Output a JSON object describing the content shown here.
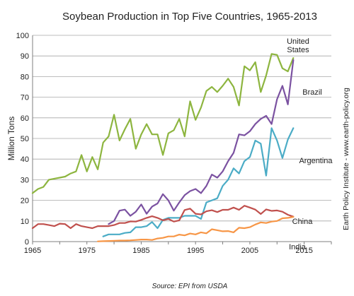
{
  "chart_data": {
    "type": "line",
    "title": "Soybean Production in Top Five Countries, 1965-2013",
    "ylabel": "Million Tons",
    "xlabel": "",
    "xlim": [
      1965,
      2020
    ],
    "ylim": [
      0,
      100
    ],
    "x_ticks": [
      1965,
      1975,
      1985,
      1995,
      2005,
      2015
    ],
    "y_ticks": [
      0,
      10,
      20,
      30,
      40,
      50,
      60,
      70,
      80,
      90,
      100
    ],
    "grid": true,
    "legend": "none",
    "source": "Source: EPI from USDA",
    "side_note": "Earth Policy Institute - www.earth-policy.org",
    "series": [
      {
        "name": "United States",
        "label_lines": [
          "United",
          "States"
        ],
        "color": "#8DB53F",
        "x": [
          1965,
          1966,
          1967,
          1968,
          1969,
          1970,
          1971,
          1972,
          1973,
          1974,
          1975,
          1976,
          1977,
          1978,
          1979,
          1980,
          1981,
          1982,
          1983,
          1984,
          1985,
          1986,
          1987,
          1988,
          1989,
          1990,
          1991,
          1992,
          1993,
          1994,
          1995,
          1996,
          1997,
          1998,
          1999,
          2000,
          2001,
          2002,
          2003,
          2004,
          2005,
          2006,
          2007,
          2008,
          2009,
          2010,
          2011,
          2012,
          2013
        ],
        "y": [
          23.5,
          25.5,
          26.5,
          30,
          30.5,
          31,
          31.5,
          33,
          34,
          42,
          34,
          41,
          35,
          48,
          51,
          61.5,
          49,
          54.5,
          59.5,
          45,
          52,
          57,
          52,
          52,
          42,
          52.5,
          54,
          59.5,
          51,
          68,
          59,
          65,
          73,
          75,
          72.5,
          75.5,
          79,
          75,
          66,
          85,
          83,
          87,
          72.5,
          80.5,
          91,
          90.5,
          84,
          82.5,
          89
        ]
      },
      {
        "name": "Brazil",
        "color": "#7B52A1",
        "x": [
          1979,
          1980,
          1981,
          1982,
          1983,
          1984,
          1985,
          1986,
          1987,
          1988,
          1989,
          1990,
          1991,
          1992,
          1993,
          1994,
          1995,
          1996,
          1997,
          1998,
          1999,
          2000,
          2001,
          2002,
          2003,
          2004,
          2005,
          2006,
          2007,
          2008,
          2009,
          2010,
          2011,
          2012,
          2013
        ],
        "y": [
          8.5,
          10,
          15,
          15.5,
          12.5,
          14.5,
          18,
          13.5,
          17,
          18.5,
          23,
          20,
          15,
          19,
          22.5,
          24.5,
          25.5,
          23.5,
          27,
          32.5,
          31,
          34,
          39,
          43,
          52,
          51.5,
          53.5,
          57,
          59.5,
          61,
          57,
          69,
          75.5,
          66.5,
          88
        ]
      },
      {
        "name": "Argentina",
        "color": "#4BACC6",
        "x": [
          1978,
          1979,
          1980,
          1981,
          1982,
          1983,
          1984,
          1985,
          1986,
          1987,
          1988,
          1989,
          1990,
          1991,
          1992,
          1993,
          1994,
          1995,
          1996,
          1997,
          1998,
          1999,
          2000,
          2001,
          2002,
          2003,
          2004,
          2005,
          2006,
          2007,
          2008,
          2009,
          2010,
          2011,
          2012,
          2013
        ],
        "y": [
          2.5,
          3.5,
          3.5,
          3.5,
          4.2,
          4.5,
          7,
          7,
          7.5,
          9.5,
          6.5,
          10.5,
          11.5,
          11.5,
          11.5,
          12.5,
          12.5,
          12.5,
          11,
          19,
          20,
          21,
          27,
          30,
          35.5,
          33,
          39,
          41,
          49,
          47.5,
          32,
          55,
          49,
          40.5,
          49.5,
          55
        ]
      },
      {
        "name": "China",
        "color": "#C0504D",
        "x": [
          1965,
          1966,
          1967,
          1968,
          1969,
          1970,
          1971,
          1972,
          1973,
          1974,
          1975,
          1976,
          1977,
          1978,
          1979,
          1980,
          1981,
          1982,
          1983,
          1984,
          1985,
          1986,
          1987,
          1988,
          1989,
          1990,
          1991,
          1992,
          1993,
          1994,
          1995,
          1996,
          1997,
          1998,
          1999,
          2000,
          2001,
          2002,
          2003,
          2004,
          2005,
          2006,
          2007,
          2008,
          2009,
          2010,
          2011,
          2012,
          2013
        ],
        "y": [
          6.5,
          8.5,
          8.5,
          8,
          7.5,
          8.7,
          8.5,
          6.5,
          8.5,
          7.5,
          7,
          6.5,
          7.5,
          7.5,
          7.5,
          8,
          9,
          9,
          9.8,
          9.7,
          10.5,
          11.5,
          12.3,
          11.5,
          10.3,
          11,
          9.7,
          10.3,
          15.3,
          16,
          13.5,
          13.2,
          14.7,
          15.2,
          14.3,
          15.4,
          15.4,
          16.5,
          15.4,
          17.4,
          16.5,
          15.5,
          13.4,
          15.6,
          14.9,
          15.1,
          14.5,
          13,
          12.1
        ]
      },
      {
        "name": "India",
        "color": "#F79646",
        "x": [
          1977,
          1978,
          1979,
          1980,
          1981,
          1982,
          1983,
          1984,
          1985,
          1986,
          1987,
          1988,
          1989,
          1990,
          1991,
          1992,
          1993,
          1994,
          1995,
          1996,
          1997,
          1998,
          1999,
          2000,
          2001,
          2002,
          2003,
          2004,
          2005,
          2006,
          2007,
          2008,
          2009,
          2010,
          2011,
          2012,
          2013
        ],
        "y": [
          0.1,
          0.2,
          0.3,
          0.4,
          0.5,
          0.5,
          0.6,
          0.8,
          1,
          1,
          0.8,
          1.5,
          1.8,
          2.5,
          2.5,
          3.4,
          3,
          3.9,
          3.5,
          4.5,
          4,
          6,
          5.5,
          5,
          5.1,
          4.5,
          6.7,
          6.5,
          7,
          8.3,
          9.3,
          9,
          9.7,
          10,
          11.3,
          11.5,
          12
        ]
      }
    ]
  }
}
